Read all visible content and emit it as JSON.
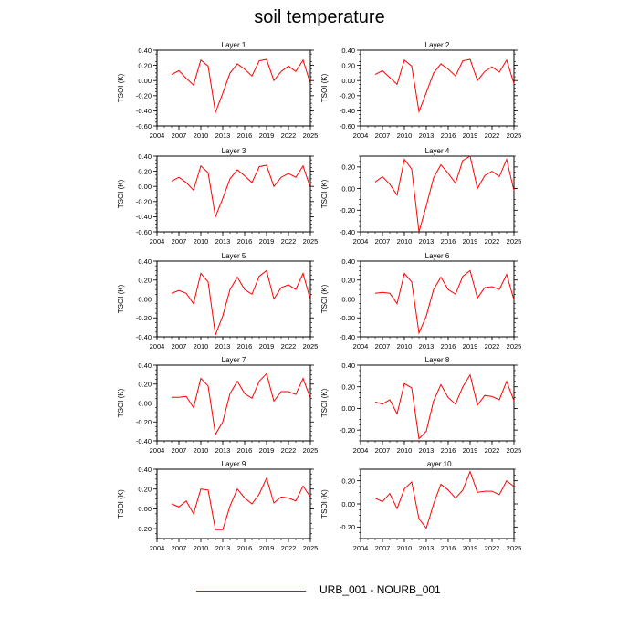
{
  "page": {
    "title": "soil temperature"
  },
  "legend": {
    "label": "URB_001 - NOURB_001",
    "color": "#ff0000"
  },
  "chart_data": [
    {
      "type": "line",
      "title": "Layer 1",
      "xlabel": "",
      "ylabel": "TSOI  (K)",
      "xlim": [
        2004,
        2025
      ],
      "ylim": [
        -0.6,
        0.4
      ],
      "xticks": [
        2004,
        2007,
        2010,
        2013,
        2016,
        2019,
        2022,
        2025
      ],
      "xtick_labels": [
        "2004",
        "2007",
        "2010",
        "2013",
        "2016",
        "2019",
        "2022",
        "2025"
      ],
      "yticks": [
        -0.6,
        -0.4,
        -0.2,
        0.0,
        0.2,
        0.4
      ],
      "ytick_labels": [
        "-0.60",
        "-0.40",
        "-0.20",
        "0.00",
        "0.20",
        "0.40"
      ],
      "series": [
        {
          "color": "#ff0000",
          "x": [
            2006,
            2007,
            2008,
            2009,
            2010,
            2011,
            2012,
            2013,
            2014,
            2015,
            2016,
            2017,
            2018,
            2019,
            2020,
            2021,
            2022,
            2023,
            2024,
            2025
          ],
          "y": [
            0.08,
            0.13,
            0.03,
            -0.06,
            0.27,
            0.19,
            -0.42,
            -0.17,
            0.1,
            0.22,
            0.15,
            0.06,
            0.26,
            0.28,
            0.0,
            0.12,
            0.19,
            0.12,
            0.27,
            -0.04
          ]
        }
      ]
    },
    {
      "type": "line",
      "title": "Layer 2",
      "xlabel": "",
      "ylabel": "TSOI  (K)",
      "xlim": [
        2004,
        2025
      ],
      "ylim": [
        -0.6,
        0.4
      ],
      "xticks": [
        2004,
        2007,
        2010,
        2013,
        2016,
        2019,
        2022,
        2025
      ],
      "xtick_labels": [
        "2004",
        "2007",
        "2010",
        "2013",
        "2016",
        "2019",
        "2022",
        "2025"
      ],
      "yticks": [
        -0.6,
        -0.4,
        -0.2,
        0.0,
        0.2,
        0.4
      ],
      "ytick_labels": [
        "-0.60",
        "-0.40",
        "-0.20",
        "0.00",
        "0.20",
        "0.40"
      ],
      "series": [
        {
          "color": "#ff0000",
          "x": [
            2006,
            2007,
            2008,
            2009,
            2010,
            2011,
            2012,
            2013,
            2014,
            2015,
            2016,
            2017,
            2018,
            2019,
            2020,
            2021,
            2022,
            2023,
            2024,
            2025
          ],
          "y": [
            0.08,
            0.13,
            0.04,
            -0.05,
            0.27,
            0.19,
            -0.41,
            -0.16,
            0.1,
            0.22,
            0.15,
            0.06,
            0.26,
            0.28,
            0.0,
            0.12,
            0.18,
            0.11,
            0.27,
            -0.04
          ]
        }
      ]
    },
    {
      "type": "line",
      "title": "Layer 3",
      "xlabel": "",
      "ylabel": "TSOI  (K)",
      "xlim": [
        2004,
        2025
      ],
      "ylim": [
        -0.6,
        0.4
      ],
      "xticks": [
        2004,
        2007,
        2010,
        2013,
        2016,
        2019,
        2022,
        2025
      ],
      "xtick_labels": [
        "2004",
        "2007",
        "2010",
        "2013",
        "2016",
        "2019",
        "2022",
        "2025"
      ],
      "yticks": [
        -0.6,
        -0.4,
        -0.2,
        0.0,
        0.2,
        0.4
      ],
      "ytick_labels": [
        "-0.60",
        "-0.40",
        "-0.20",
        "0.00",
        "0.20",
        "0.40"
      ],
      "series": [
        {
          "color": "#ff0000",
          "x": [
            2006,
            2007,
            2008,
            2009,
            2010,
            2011,
            2012,
            2013,
            2014,
            2015,
            2016,
            2017,
            2018,
            2019,
            2020,
            2021,
            2022,
            2023,
            2024,
            2025
          ],
          "y": [
            0.07,
            0.12,
            0.05,
            -0.05,
            0.27,
            0.18,
            -0.4,
            -0.16,
            0.1,
            0.22,
            0.14,
            0.05,
            0.26,
            0.28,
            0.0,
            0.12,
            0.17,
            0.12,
            0.27,
            -0.02
          ]
        }
      ]
    },
    {
      "type": "line",
      "title": "Layer 4",
      "xlabel": "",
      "ylabel": "TSOI  (K)",
      "xlim": [
        2004,
        2025
      ],
      "ylim": [
        -0.4,
        0.3
      ],
      "xticks": [
        2004,
        2007,
        2010,
        2013,
        2016,
        2019,
        2022,
        2025
      ],
      "xtick_labels": [
        "2004",
        "2007",
        "2010",
        "2013",
        "2016",
        "2019",
        "2022",
        "2025"
      ],
      "yticks": [
        -0.4,
        -0.2,
        0.0,
        0.2
      ],
      "ytick_labels": [
        "-0.40",
        "-0.20",
        "0.00",
        "0.20"
      ],
      "series": [
        {
          "color": "#ff0000",
          "x": [
            2006,
            2007,
            2008,
            2009,
            2010,
            2011,
            2012,
            2013,
            2014,
            2015,
            2016,
            2017,
            2018,
            2019,
            2020,
            2021,
            2022,
            2023,
            2024,
            2025
          ],
          "y": [
            0.06,
            0.11,
            0.04,
            -0.06,
            0.27,
            0.18,
            -0.4,
            -0.16,
            0.1,
            0.22,
            0.14,
            0.05,
            0.26,
            0.3,
            0.0,
            0.12,
            0.16,
            0.11,
            0.27,
            -0.02
          ]
        }
      ]
    },
    {
      "type": "line",
      "title": "Layer 5",
      "xlabel": "",
      "ylabel": "TSOI  (K)",
      "xlim": [
        2004,
        2025
      ],
      "ylim": [
        -0.4,
        0.4
      ],
      "xticks": [
        2004,
        2007,
        2010,
        2013,
        2016,
        2019,
        2022,
        2025
      ],
      "xtick_labels": [
        "2004",
        "2007",
        "2010",
        "2013",
        "2016",
        "2019",
        "2022",
        "2025"
      ],
      "yticks": [
        -0.4,
        -0.2,
        0.0,
        0.2,
        0.4
      ],
      "ytick_labels": [
        "-0.40",
        "-0.20",
        "0.00",
        "0.20",
        "0.40"
      ],
      "series": [
        {
          "color": "#ff0000",
          "x": [
            2006,
            2007,
            2008,
            2009,
            2010,
            2011,
            2012,
            2013,
            2014,
            2015,
            2016,
            2017,
            2018,
            2019,
            2020,
            2021,
            2022,
            2023,
            2024,
            2025
          ],
          "y": [
            0.06,
            0.09,
            0.06,
            -0.05,
            0.27,
            0.18,
            -0.38,
            -0.18,
            0.1,
            0.23,
            0.1,
            0.05,
            0.24,
            0.3,
            0.0,
            0.12,
            0.15,
            0.1,
            0.27,
            -0.01
          ]
        }
      ]
    },
    {
      "type": "line",
      "title": "Layer 6",
      "xlabel": "",
      "ylabel": "TSOI  (K)",
      "xlim": [
        2004,
        2025
      ],
      "ylim": [
        -0.4,
        0.4
      ],
      "xticks": [
        2004,
        2007,
        2010,
        2013,
        2016,
        2019,
        2022,
        2025
      ],
      "xtick_labels": [
        "2004",
        "2007",
        "2010",
        "2013",
        "2016",
        "2019",
        "2022",
        "2025"
      ],
      "yticks": [
        -0.4,
        -0.2,
        0.0,
        0.2,
        0.4
      ],
      "ytick_labels": [
        "-0.40",
        "-0.20",
        "0.00",
        "0.20",
        "0.40"
      ],
      "series": [
        {
          "color": "#ff0000",
          "x": [
            2006,
            2007,
            2008,
            2009,
            2010,
            2011,
            2012,
            2013,
            2014,
            2015,
            2016,
            2017,
            2018,
            2019,
            2020,
            2021,
            2022,
            2023,
            2024,
            2025
          ],
          "y": [
            0.06,
            0.07,
            0.06,
            -0.05,
            0.27,
            0.18,
            -0.36,
            -0.18,
            0.1,
            0.23,
            0.1,
            0.05,
            0.24,
            0.3,
            0.01,
            0.12,
            0.13,
            0.1,
            0.26,
            -0.01
          ]
        }
      ]
    },
    {
      "type": "line",
      "title": "Layer 7",
      "xlabel": "",
      "ylabel": "TSOI  (K)",
      "xlim": [
        2004,
        2025
      ],
      "ylim": [
        -0.4,
        0.4
      ],
      "xticks": [
        2004,
        2007,
        2010,
        2013,
        2016,
        2019,
        2022,
        2025
      ],
      "xtick_labels": [
        "2004",
        "2007",
        "2010",
        "2013",
        "2016",
        "2019",
        "2022",
        "2025"
      ],
      "yticks": [
        -0.4,
        -0.2,
        0.0,
        0.2,
        0.4
      ],
      "ytick_labels": [
        "-0.40",
        "-0.20",
        "0.00",
        "0.20",
        "0.40"
      ],
      "series": [
        {
          "color": "#ff0000",
          "x": [
            2006,
            2007,
            2008,
            2009,
            2010,
            2011,
            2012,
            2013,
            2014,
            2015,
            2016,
            2017,
            2018,
            2019,
            2020,
            2021,
            2022,
            2023,
            2024,
            2025
          ],
          "y": [
            0.06,
            0.06,
            0.07,
            -0.05,
            0.26,
            0.18,
            -0.33,
            -0.2,
            0.1,
            0.23,
            0.1,
            0.05,
            0.23,
            0.31,
            0.02,
            0.12,
            0.12,
            0.09,
            0.26,
            0.05
          ]
        }
      ]
    },
    {
      "type": "line",
      "title": "Layer 8",
      "xlabel": "",
      "ylabel": "TSOI  (K)",
      "xlim": [
        2004,
        2025
      ],
      "ylim": [
        -0.3,
        0.4
      ],
      "xticks": [
        2004,
        2007,
        2010,
        2013,
        2016,
        2019,
        2022,
        2025
      ],
      "xtick_labels": [
        "2004",
        "2007",
        "2010",
        "2013",
        "2016",
        "2019",
        "2022",
        "2025"
      ],
      "yticks": [
        -0.2,
        0.0,
        0.2,
        0.4
      ],
      "ytick_labels": [
        "-0.20",
        "0.00",
        "0.20",
        "0.40"
      ],
      "series": [
        {
          "color": "#ff0000",
          "x": [
            2006,
            2007,
            2008,
            2009,
            2010,
            2011,
            2012,
            2013,
            2014,
            2015,
            2016,
            2017,
            2018,
            2019,
            2020,
            2021,
            2022,
            2023,
            2024,
            2025
          ],
          "y": [
            0.06,
            0.04,
            0.08,
            -0.05,
            0.23,
            0.19,
            -0.28,
            -0.21,
            0.07,
            0.22,
            0.1,
            0.04,
            0.2,
            0.31,
            0.03,
            0.12,
            0.11,
            0.08,
            0.25,
            0.07
          ]
        }
      ]
    },
    {
      "type": "line",
      "title": "Layer 9",
      "xlabel": "",
      "ylabel": "TSOI  (K)",
      "xlim": [
        2004,
        2025
      ],
      "ylim": [
        -0.3,
        0.4
      ],
      "xticks": [
        2004,
        2007,
        2010,
        2013,
        2016,
        2019,
        2022,
        2025
      ],
      "xtick_labels": [
        "2004",
        "2007",
        "2010",
        "2013",
        "2016",
        "2019",
        "2022",
        "2025"
      ],
      "yticks": [
        -0.2,
        0.0,
        0.2,
        0.4
      ],
      "ytick_labels": [
        "-0.20",
        "0.00",
        "0.20",
        "0.40"
      ],
      "series": [
        {
          "color": "#ff0000",
          "x": [
            2006,
            2007,
            2008,
            2009,
            2010,
            2011,
            2012,
            2013,
            2014,
            2015,
            2016,
            2017,
            2018,
            2019,
            2020,
            2021,
            2022,
            2023,
            2024,
            2025
          ],
          "y": [
            0.05,
            0.02,
            0.08,
            -0.05,
            0.2,
            0.19,
            -0.21,
            -0.21,
            0.03,
            0.2,
            0.11,
            0.05,
            0.15,
            0.31,
            0.06,
            0.12,
            0.11,
            0.08,
            0.23,
            0.12
          ]
        }
      ]
    },
    {
      "type": "line",
      "title": "Layer 10",
      "xlabel": "",
      "ylabel": "TSOI  (K)",
      "xlim": [
        2004,
        2025
      ],
      "ylim": [
        -0.3,
        0.3
      ],
      "xticks": [
        2004,
        2007,
        2010,
        2013,
        2016,
        2019,
        2022,
        2025
      ],
      "xtick_labels": [
        "2004",
        "2007",
        "2010",
        "2013",
        "2016",
        "2019",
        "2022",
        "2025"
      ],
      "yticks": [
        -0.2,
        0.0,
        0.2
      ],
      "ytick_labels": [
        "-0.20",
        "0.00",
        "0.20"
      ],
      "series": [
        {
          "color": "#ff0000",
          "x": [
            2006,
            2007,
            2008,
            2009,
            2010,
            2011,
            2012,
            2013,
            2014,
            2015,
            2016,
            2017,
            2018,
            2019,
            2020,
            2021,
            2022,
            2023,
            2024,
            2025
          ],
          "y": [
            0.05,
            0.02,
            0.09,
            -0.04,
            0.13,
            0.19,
            -0.13,
            -0.21,
            0.0,
            0.17,
            0.12,
            0.05,
            0.12,
            0.28,
            0.1,
            0.11,
            0.11,
            0.08,
            0.2,
            0.15
          ]
        }
      ]
    }
  ]
}
